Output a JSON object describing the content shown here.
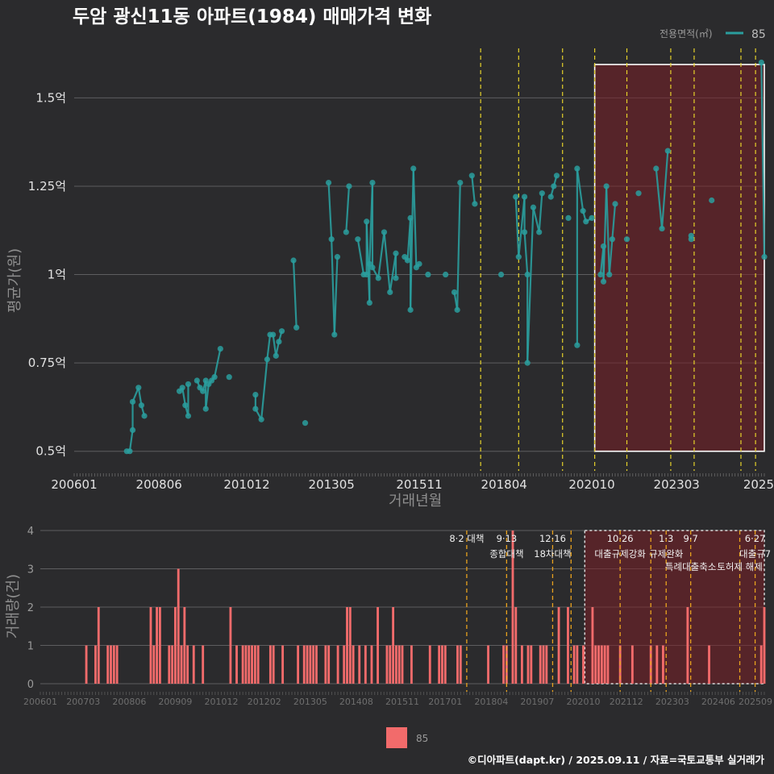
{
  "title": "두암 광신11동 아파트(1984) 매매가격 변화",
  "caption": "©디아파트(dapt.kr) / 2025.09.11 / 자료=국토교통부 실거래가",
  "colors": {
    "background": "#2b2b2d",
    "series": "#2a9d9d",
    "volume": "#f26b6b",
    "policy_line": "#e6d22a",
    "policy_line_lower": "#e8a21e",
    "highlight": "#7a1f26"
  },
  "top_legend": {
    "title": "전용면적(㎡)",
    "entries": [
      "85"
    ]
  },
  "bottom_legend": {
    "entries": [
      "85"
    ]
  },
  "chart_data": [
    {
      "type": "line",
      "title": "두암 광신11동 아파트(1984) 매매가격 변화",
      "xlabel": "거래년월",
      "ylabel": "평균가(원)",
      "x_tick_labels": [
        "200601",
        "200806",
        "201012",
        "201305",
        "201511",
        "201804",
        "202010",
        "202303",
        "2025"
      ],
      "y_tick_labels": [
        "0.5억",
        "0.75억",
        "1억",
        "1.25억",
        "1.5억"
      ],
      "y_ticks": [
        0.5,
        0.75,
        1.0,
        1.25,
        1.5
      ],
      "ylim": [
        0.44,
        1.64
      ],
      "xlim": [
        "2006-01",
        "2025-09"
      ],
      "grid": true,
      "legend_position": "top-right",
      "highlight_range": [
        "2020-11",
        "2025-09"
      ],
      "policy_lines": [
        "2017-08",
        "2018-09",
        "2019-12",
        "2020-11",
        "2021-10",
        "2023-01",
        "2023-09",
        "2025-01",
        "2025-06"
      ],
      "series": [
        {
          "name": "85",
          "unit": "억",
          "points": [
            [
              "2007-07",
              0.5
            ],
            [
              "2007-08",
              0.5
            ],
            [
              "2007-09",
              0.56
            ],
            [
              "2007-09",
              0.64
            ],
            [
              "2007-11",
              0.68
            ],
            [
              "2007-12",
              0.63
            ],
            [
              "2008-01",
              0.6
            ],
            [
              "2009-01",
              0.67
            ],
            [
              "2009-02",
              0.68
            ],
            [
              "2009-03",
              0.63
            ],
            [
              "2009-04",
              0.6
            ],
            [
              "2009-04",
              0.69
            ],
            [
              "2009-07",
              0.7
            ],
            [
              "2009-08",
              0.68
            ],
            [
              "2009-09",
              0.67
            ],
            [
              "2009-10",
              0.7
            ],
            [
              "2009-10",
              0.62
            ],
            [
              "2009-11",
              0.69
            ],
            [
              "2009-12",
              0.7
            ],
            [
              "2010-01",
              0.71
            ],
            [
              "2010-03",
              0.79
            ],
            [
              "2010-06",
              0.71
            ],
            [
              "2011-03",
              0.66
            ],
            [
              "2011-03",
              0.62
            ],
            [
              "2011-05",
              0.59
            ],
            [
              "2011-07",
              0.76
            ],
            [
              "2011-08",
              0.83
            ],
            [
              "2011-09",
              0.83
            ],
            [
              "2011-10",
              0.77
            ],
            [
              "2011-11",
              0.81
            ],
            [
              "2011-12",
              0.84
            ],
            [
              "2012-08",
              0.58
            ],
            [
              "2012-04",
              1.04
            ],
            [
              "2012-05",
              0.85
            ],
            [
              "2013-04",
              1.26
            ],
            [
              "2013-05",
              1.1
            ],
            [
              "2013-06",
              0.83
            ],
            [
              "2013-07",
              1.05
            ],
            [
              "2013-10",
              1.12
            ],
            [
              "2013-11",
              1.25
            ],
            [
              "2014-02",
              1.1
            ],
            [
              "2014-04",
              1.0
            ],
            [
              "2014-05",
              1.0
            ],
            [
              "2014-05",
              1.15
            ],
            [
              "2014-06",
              0.92
            ],
            [
              "2014-06",
              1.03
            ],
            [
              "2014-07",
              1.26
            ],
            [
              "2014-07",
              1.02
            ],
            [
              "2014-09",
              0.99
            ],
            [
              "2014-11",
              1.12
            ],
            [
              "2015-01",
              0.95
            ],
            [
              "2015-03",
              1.06
            ],
            [
              "2015-03",
              0.99
            ],
            [
              "2015-06",
              1.05
            ],
            [
              "2015-07",
              1.04
            ],
            [
              "2015-08",
              1.16
            ],
            [
              "2015-08",
              0.9
            ],
            [
              "2015-09",
              1.3
            ],
            [
              "2015-10",
              1.02
            ],
            [
              "2015-11",
              1.03
            ],
            [
              "2016-02",
              1.0
            ],
            [
              "2016-08",
              1.0
            ],
            [
              "2016-11",
              0.95
            ],
            [
              "2016-12",
              0.9
            ],
            [
              "2017-01",
              1.26
            ],
            [
              "2017-05",
              1.28
            ],
            [
              "2017-06",
              1.2
            ],
            [
              "2018-03",
              1.0
            ],
            [
              "2018-08",
              1.22
            ],
            [
              "2018-09",
              1.05
            ],
            [
              "2018-11",
              1.22
            ],
            [
              "2018-11",
              1.12
            ],
            [
              "2018-12",
              1.0
            ],
            [
              "2018-12",
              0.75
            ],
            [
              "2019-02",
              1.19
            ],
            [
              "2019-04",
              1.12
            ],
            [
              "2019-05",
              1.23
            ],
            [
              "2019-08",
              1.22
            ],
            [
              "2019-09",
              1.25
            ],
            [
              "2019-10",
              1.28
            ],
            [
              "2020-02",
              1.16
            ],
            [
              "2020-05",
              0.8
            ],
            [
              "2020-05",
              1.3
            ],
            [
              "2020-07",
              1.18
            ],
            [
              "2020-08",
              1.15
            ],
            [
              "2020-10",
              1.16
            ],
            [
              "2021-01",
              1.0
            ],
            [
              "2021-02",
              1.08
            ],
            [
              "2021-02",
              0.98
            ],
            [
              "2021-03",
              1.25
            ],
            [
              "2021-04",
              1.0
            ],
            [
              "2021-05",
              1.1
            ],
            [
              "2021-06",
              1.2
            ],
            [
              "2021-10",
              1.1
            ],
            [
              "2022-02",
              1.23
            ],
            [
              "2022-08",
              1.3
            ],
            [
              "2022-10",
              1.13
            ],
            [
              "2022-12",
              1.35
            ],
            [
              "2023-08",
              1.11
            ],
            [
              "2023-08",
              1.1
            ],
            [
              "2024-03",
              1.21
            ],
            [
              "2025-08",
              1.6
            ],
            [
              "2025-09",
              1.05
            ]
          ]
        }
      ]
    },
    {
      "type": "bar",
      "title": "",
      "xlabel": "",
      "ylabel": "거래량(건)",
      "ylim": [
        0,
        4
      ],
      "y_ticks": [
        0,
        1,
        2,
        3,
        4
      ],
      "x_tick_labels": [
        "200601",
        "200703",
        "200806",
        "200909",
        "201012",
        "201202",
        "201305",
        "201408",
        "201511",
        "201701",
        "201804",
        "201907",
        "202010",
        "202112",
        "202303",
        "202406",
        "202509"
      ],
      "highlight_range": [
        "2020-11",
        "2025-09"
      ],
      "series": [
        {
          "name": "85",
          "bars": [
            [
              "2007-04",
              1
            ],
            [
              "2007-07",
              1
            ],
            [
              "2007-08",
              2
            ],
            [
              "2007-11",
              1
            ],
            [
              "2007-12",
              1
            ],
            [
              "2008-01",
              1
            ],
            [
              "2008-02",
              1
            ],
            [
              "2009-01",
              2
            ],
            [
              "2009-02",
              1
            ],
            [
              "2009-03",
              2
            ],
            [
              "2009-04",
              2
            ],
            [
              "2009-07",
              1
            ],
            [
              "2009-08",
              1
            ],
            [
              "2009-09",
              2
            ],
            [
              "2009-10",
              3
            ],
            [
              "2009-11",
              1
            ],
            [
              "2009-12",
              2
            ],
            [
              "2010-01",
              1
            ],
            [
              "2010-03",
              1
            ],
            [
              "2010-06",
              1
            ],
            [
              "2011-03",
              2
            ],
            [
              "2011-05",
              1
            ],
            [
              "2011-07",
              1
            ],
            [
              "2011-08",
              1
            ],
            [
              "2011-09",
              1
            ],
            [
              "2011-10",
              1
            ],
            [
              "2011-11",
              1
            ],
            [
              "2011-12",
              1
            ],
            [
              "2012-04",
              1
            ],
            [
              "2012-05",
              1
            ],
            [
              "2012-08",
              1
            ],
            [
              "2013-01",
              1
            ],
            [
              "2013-03",
              1
            ],
            [
              "2013-04",
              1
            ],
            [
              "2013-05",
              1
            ],
            [
              "2013-06",
              1
            ],
            [
              "2013-07",
              1
            ],
            [
              "2013-10",
              1
            ],
            [
              "2013-11",
              1
            ],
            [
              "2014-02",
              1
            ],
            [
              "2014-04",
              1
            ],
            [
              "2014-05",
              2
            ],
            [
              "2014-06",
              2
            ],
            [
              "2014-07",
              1
            ],
            [
              "2014-09",
              1
            ],
            [
              "2014-11",
              1
            ],
            [
              "2015-01",
              1
            ],
            [
              "2015-03",
              2
            ],
            [
              "2015-06",
              1
            ],
            [
              "2015-07",
              1
            ],
            [
              "2015-08",
              2
            ],
            [
              "2015-09",
              1
            ],
            [
              "2015-10",
              1
            ],
            [
              "2015-11",
              1
            ],
            [
              "2016-02",
              1
            ],
            [
              "2016-08",
              1
            ],
            [
              "2016-11",
              1
            ],
            [
              "2016-12",
              1
            ],
            [
              "2017-01",
              1
            ],
            [
              "2017-05",
              1
            ],
            [
              "2017-06",
              1
            ],
            [
              "2018-03",
              1
            ],
            [
              "2018-08",
              1
            ],
            [
              "2018-09",
              1
            ],
            [
              "2018-11",
              4
            ],
            [
              "2018-12",
              2
            ],
            [
              "2019-02",
              1
            ],
            [
              "2019-04",
              1
            ],
            [
              "2019-05",
              1
            ],
            [
              "2019-08",
              1
            ],
            [
              "2019-09",
              1
            ],
            [
              "2019-10",
              1
            ],
            [
              "2020-02",
              2
            ],
            [
              "2020-05",
              2
            ],
            [
              "2020-07",
              1
            ],
            [
              "2020-08",
              1
            ],
            [
              "2020-10",
              1
            ],
            [
              "2021-01",
              2
            ],
            [
              "2021-02",
              1
            ],
            [
              "2021-03",
              1
            ],
            [
              "2021-04",
              1
            ],
            [
              "2021-05",
              1
            ],
            [
              "2021-06",
              1
            ],
            [
              "2021-10",
              1
            ],
            [
              "2022-02",
              1
            ],
            [
              "2022-08",
              1
            ],
            [
              "2022-10",
              1
            ],
            [
              "2022-12",
              1
            ],
            [
              "2023-08",
              2
            ],
            [
              "2024-03",
              1
            ],
            [
              "2025-08",
              1
            ],
            [
              "2025-09",
              2
            ]
          ]
        }
      ],
      "policy_annotations": [
        {
          "date": "2017-08",
          "date_label": "8·2 대책",
          "label": ""
        },
        {
          "date": "2018-09",
          "date_label": "9·13",
          "label": "종합대책"
        },
        {
          "date": "2019-12",
          "date_label": "12·16",
          "label": "18차대책"
        },
        {
          "date": "2020-06",
          "date_label": "",
          "label": ""
        },
        {
          "date": "2021-10",
          "date_label": "10·26",
          "label": "대출규제강화"
        },
        {
          "date": "2022-08",
          "date_label": "",
          "label": ""
        },
        {
          "date": "2023-01",
          "date_label": "1·3",
          "label": "규제완화"
        },
        {
          "date": "2023-09",
          "date_label": "9·7",
          "label": "특례대출축소"
        },
        {
          "date": "2025-01",
          "date_label": "",
          "label": "토허제 해제"
        },
        {
          "date": "2025-06",
          "date_label": "6·27",
          "label": "대출규7"
        }
      ]
    }
  ]
}
